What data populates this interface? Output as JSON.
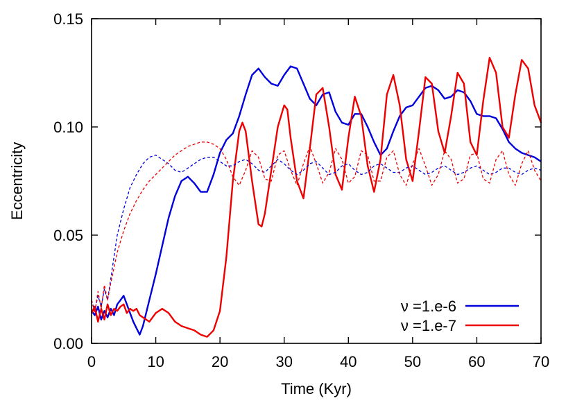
{
  "chart_data": {
    "type": "line",
    "xlabel": "Time (Kyr)",
    "ylabel": "Eccentricity",
    "xlim": [
      0,
      70
    ],
    "ylim": [
      0,
      0.15
    ],
    "xticks": [
      0,
      10,
      20,
      30,
      40,
      50,
      60,
      70
    ],
    "xtick_labels": [
      "0",
      "10",
      "20",
      "30",
      "40",
      "50",
      "60",
      "70"
    ],
    "yticks": [
      0,
      0.05,
      0.1,
      0.15
    ],
    "ytick_labels": [
      "0.00",
      "0.05",
      "0.10",
      "0.15"
    ],
    "grid": false,
    "legend_position": "bottom-right",
    "series": [
      {
        "name": "ν =1.e-6",
        "color": "#0000dd",
        "style": "solid",
        "points": [
          [
            0,
            0.015
          ],
          [
            0.5,
            0.013
          ],
          [
            1,
            0.017
          ],
          [
            1.5,
            0.011
          ],
          [
            2,
            0.015
          ],
          [
            2.5,
            0.012
          ],
          [
            3,
            0.016
          ],
          [
            3.5,
            0.013
          ],
          [
            4,
            0.018
          ],
          [
            4.5,
            0.02
          ],
          [
            5,
            0.022
          ],
          [
            5.5,
            0.018
          ],
          [
            6,
            0.014
          ],
          [
            6.5,
            0.01
          ],
          [
            7,
            0.007
          ],
          [
            7.5,
            0.004
          ],
          [
            8,
            0.008
          ],
          [
            8.5,
            0.014
          ],
          [
            9,
            0.02
          ],
          [
            10,
            0.032
          ],
          [
            11,
            0.045
          ],
          [
            12,
            0.058
          ],
          [
            13,
            0.068
          ],
          [
            14,
            0.075
          ],
          [
            15,
            0.077
          ],
          [
            16,
            0.074
          ],
          [
            17,
            0.07
          ],
          [
            18,
            0.07
          ],
          [
            19,
            0.078
          ],
          [
            20,
            0.088
          ],
          [
            21,
            0.094
          ],
          [
            22,
            0.097
          ],
          [
            23,
            0.105
          ],
          [
            24,
            0.115
          ],
          [
            25,
            0.124
          ],
          [
            26,
            0.127
          ],
          [
            27,
            0.123
          ],
          [
            28,
            0.12
          ],
          [
            29,
            0.119
          ],
          [
            30,
            0.124
          ],
          [
            31,
            0.128
          ],
          [
            32,
            0.127
          ],
          [
            33,
            0.12
          ],
          [
            34,
            0.113
          ],
          [
            35,
            0.11
          ],
          [
            36,
            0.115
          ],
          [
            37,
            0.116
          ],
          [
            38,
            0.107
          ],
          [
            39,
            0.102
          ],
          [
            40,
            0.101
          ],
          [
            41,
            0.106
          ],
          [
            42,
            0.106
          ],
          [
            43,
            0.1
          ],
          [
            44,
            0.093
          ],
          [
            45,
            0.087
          ],
          [
            46,
            0.09
          ],
          [
            47,
            0.098
          ],
          [
            48,
            0.105
          ],
          [
            49,
            0.109
          ],
          [
            50,
            0.11
          ],
          [
            51,
            0.114
          ],
          [
            52,
            0.118
          ],
          [
            53,
            0.119
          ],
          [
            54,
            0.117
          ],
          [
            55,
            0.113
          ],
          [
            56,
            0.114
          ],
          [
            57,
            0.117
          ],
          [
            58,
            0.116
          ],
          [
            59,
            0.112
          ],
          [
            60,
            0.106
          ],
          [
            61,
            0.105
          ],
          [
            62,
            0.105
          ],
          [
            63,
            0.104
          ],
          [
            64,
            0.099
          ],
          [
            65,
            0.093
          ],
          [
            66,
            0.09
          ],
          [
            67,
            0.088
          ],
          [
            68,
            0.087
          ],
          [
            69,
            0.086
          ],
          [
            70,
            0.084
          ]
        ]
      },
      {
        "name": "ν =1.e-7",
        "color": "#ee0000",
        "style": "solid",
        "points": [
          [
            0,
            0.014
          ],
          [
            0.5,
            0.017
          ],
          [
            1,
            0.01
          ],
          [
            1.5,
            0.016
          ],
          [
            2,
            0.011
          ],
          [
            2.5,
            0.018
          ],
          [
            3,
            0.013
          ],
          [
            3.5,
            0.016
          ],
          [
            4,
            0.015
          ],
          [
            4.5,
            0.017
          ],
          [
            5,
            0.018
          ],
          [
            5.5,
            0.014
          ],
          [
            6,
            0.016
          ],
          [
            6.5,
            0.015
          ],
          [
            7,
            0.016
          ],
          [
            7.5,
            0.013
          ],
          [
            8,
            0.012
          ],
          [
            9,
            0.01
          ],
          [
            10,
            0.014
          ],
          [
            11,
            0.016
          ],
          [
            12,
            0.014
          ],
          [
            13,
            0.01
          ],
          [
            14,
            0.008
          ],
          [
            15,
            0.007
          ],
          [
            16,
            0.006
          ],
          [
            17,
            0.004
          ],
          [
            18,
            0.003
          ],
          [
            19,
            0.006
          ],
          [
            20,
            0.015
          ],
          [
            21,
            0.04
          ],
          [
            22,
            0.075
          ],
          [
            23,
            0.098
          ],
          [
            23.5,
            0.102
          ],
          [
            24,
            0.098
          ],
          [
            25,
            0.075
          ],
          [
            26,
            0.055
          ],
          [
            26.5,
            0.054
          ],
          [
            27,
            0.06
          ],
          [
            28,
            0.08
          ],
          [
            29,
            0.1
          ],
          [
            30,
            0.11
          ],
          [
            30.5,
            0.108
          ],
          [
            31,
            0.095
          ],
          [
            32,
            0.075
          ],
          [
            33,
            0.067
          ],
          [
            34,
            0.09
          ],
          [
            35,
            0.115
          ],
          [
            36,
            0.118
          ],
          [
            37,
            0.1
          ],
          [
            38,
            0.078
          ],
          [
            39,
            0.071
          ],
          [
            40,
            0.095
          ],
          [
            41,
            0.114
          ],
          [
            42,
            0.105
          ],
          [
            43,
            0.082
          ],
          [
            44,
            0.07
          ],
          [
            45,
            0.085
          ],
          [
            46,
            0.115
          ],
          [
            47,
            0.124
          ],
          [
            48,
            0.11
          ],
          [
            49,
            0.085
          ],
          [
            50,
            0.075
          ],
          [
            51,
            0.098
          ],
          [
            52,
            0.123
          ],
          [
            53,
            0.12
          ],
          [
            54,
            0.098
          ],
          [
            55,
            0.088
          ],
          [
            56,
            0.105
          ],
          [
            57,
            0.125
          ],
          [
            58,
            0.12
          ],
          [
            59,
            0.093
          ],
          [
            60,
            0.087
          ],
          [
            61,
            0.112
          ],
          [
            62,
            0.132
          ],
          [
            63,
            0.125
          ],
          [
            64,
            0.1
          ],
          [
            65,
            0.095
          ],
          [
            66,
            0.115
          ],
          [
            67,
            0.131
          ],
          [
            68,
            0.127
          ],
          [
            69,
            0.11
          ],
          [
            70,
            0.102
          ]
        ]
      },
      {
        "color": "#0000dd",
        "style": "dashed",
        "points": [
          [
            0,
            0.02
          ],
          [
            0.5,
            0.015
          ],
          [
            1,
            0.022
          ],
          [
            1.5,
            0.017
          ],
          [
            2,
            0.025
          ],
          [
            2.5,
            0.02
          ],
          [
            3,
            0.03
          ],
          [
            3.5,
            0.04
          ],
          [
            4,
            0.05
          ],
          [
            5,
            0.062
          ],
          [
            6,
            0.072
          ],
          [
            7,
            0.078
          ],
          [
            8,
            0.083
          ],
          [
            9,
            0.086
          ],
          [
            10,
            0.087
          ],
          [
            11,
            0.085
          ],
          [
            12,
            0.083
          ],
          [
            13,
            0.08
          ],
          [
            14,
            0.079
          ],
          [
            15,
            0.081
          ],
          [
            16,
            0.083
          ],
          [
            17,
            0.085
          ],
          [
            18,
            0.086
          ],
          [
            19,
            0.086
          ],
          [
            20,
            0.084
          ],
          [
            21,
            0.082
          ],
          [
            22,
            0.082
          ],
          [
            23,
            0.084
          ],
          [
            24,
            0.085
          ],
          [
            25,
            0.083
          ],
          [
            26,
            0.08
          ],
          [
            27,
            0.079
          ],
          [
            28,
            0.082
          ],
          [
            29,
            0.085
          ],
          [
            30,
            0.083
          ],
          [
            31,
            0.08
          ],
          [
            32,
            0.078
          ],
          [
            33,
            0.08
          ],
          [
            34,
            0.083
          ],
          [
            35,
            0.084
          ],
          [
            36,
            0.081
          ],
          [
            37,
            0.078
          ],
          [
            38,
            0.079
          ],
          [
            39,
            0.082
          ],
          [
            40,
            0.083
          ],
          [
            41,
            0.08
          ],
          [
            42,
            0.078
          ],
          [
            43,
            0.079
          ],
          [
            44,
            0.082
          ],
          [
            45,
            0.083
          ],
          [
            46,
            0.081
          ],
          [
            47,
            0.079
          ],
          [
            48,
            0.079
          ],
          [
            49,
            0.081
          ],
          [
            50,
            0.082
          ],
          [
            51,
            0.08
          ],
          [
            52,
            0.078
          ],
          [
            53,
            0.079
          ],
          [
            54,
            0.081
          ],
          [
            55,
            0.082
          ],
          [
            56,
            0.08
          ],
          [
            57,
            0.078
          ],
          [
            58,
            0.079
          ],
          [
            59,
            0.081
          ],
          [
            60,
            0.082
          ],
          [
            61,
            0.08
          ],
          [
            62,
            0.078
          ],
          [
            63,
            0.079
          ],
          [
            64,
            0.081
          ],
          [
            65,
            0.081
          ],
          [
            66,
            0.079
          ],
          [
            67,
            0.078
          ],
          [
            68,
            0.08
          ],
          [
            69,
            0.081
          ],
          [
            70,
            0.08
          ]
        ]
      },
      {
        "color": "#ee0000",
        "style": "dashed",
        "points": [
          [
            0,
            0.02
          ],
          [
            0.5,
            0.014
          ],
          [
            1,
            0.024
          ],
          [
            1.5,
            0.016
          ],
          [
            2,
            0.027
          ],
          [
            2.5,
            0.02
          ],
          [
            3,
            0.028
          ],
          [
            3.5,
            0.035
          ],
          [
            4,
            0.042
          ],
          [
            5,
            0.052
          ],
          [
            6,
            0.06
          ],
          [
            7,
            0.066
          ],
          [
            8,
            0.071
          ],
          [
            9,
            0.075
          ],
          [
            10,
            0.078
          ],
          [
            11,
            0.081
          ],
          [
            12,
            0.084
          ],
          [
            13,
            0.087
          ],
          [
            14,
            0.089
          ],
          [
            15,
            0.091
          ],
          [
            16,
            0.092
          ],
          [
            17,
            0.093
          ],
          [
            18,
            0.093
          ],
          [
            19,
            0.092
          ],
          [
            20,
            0.09
          ],
          [
            21,
            0.085
          ],
          [
            22,
            0.077
          ],
          [
            23,
            0.073
          ],
          [
            24,
            0.08
          ],
          [
            25,
            0.089
          ],
          [
            26,
            0.086
          ],
          [
            27,
            0.076
          ],
          [
            28,
            0.075
          ],
          [
            29,
            0.087
          ],
          [
            30,
            0.089
          ],
          [
            31,
            0.08
          ],
          [
            32,
            0.073
          ],
          [
            33,
            0.083
          ],
          [
            34,
            0.091
          ],
          [
            35,
            0.083
          ],
          [
            36,
            0.074
          ],
          [
            37,
            0.079
          ],
          [
            38,
            0.09
          ],
          [
            39,
            0.085
          ],
          [
            40,
            0.074
          ],
          [
            41,
            0.077
          ],
          [
            42,
            0.089
          ],
          [
            43,
            0.087
          ],
          [
            44,
            0.075
          ],
          [
            45,
            0.075
          ],
          [
            46,
            0.086
          ],
          [
            47,
            0.089
          ],
          [
            48,
            0.078
          ],
          [
            49,
            0.073
          ],
          [
            50,
            0.083
          ],
          [
            51,
            0.09
          ],
          [
            52,
            0.082
          ],
          [
            53,
            0.073
          ],
          [
            54,
            0.078
          ],
          [
            55,
            0.089
          ],
          [
            56,
            0.085
          ],
          [
            57,
            0.074
          ],
          [
            58,
            0.076
          ],
          [
            59,
            0.087
          ],
          [
            60,
            0.088
          ],
          [
            61,
            0.076
          ],
          [
            62,
            0.074
          ],
          [
            63,
            0.085
          ],
          [
            64,
            0.089
          ],
          [
            65,
            0.078
          ],
          [
            66,
            0.073
          ],
          [
            67,
            0.083
          ],
          [
            68,
            0.089
          ],
          [
            69,
            0.08
          ],
          [
            70,
            0.075
          ]
        ]
      }
    ]
  }
}
